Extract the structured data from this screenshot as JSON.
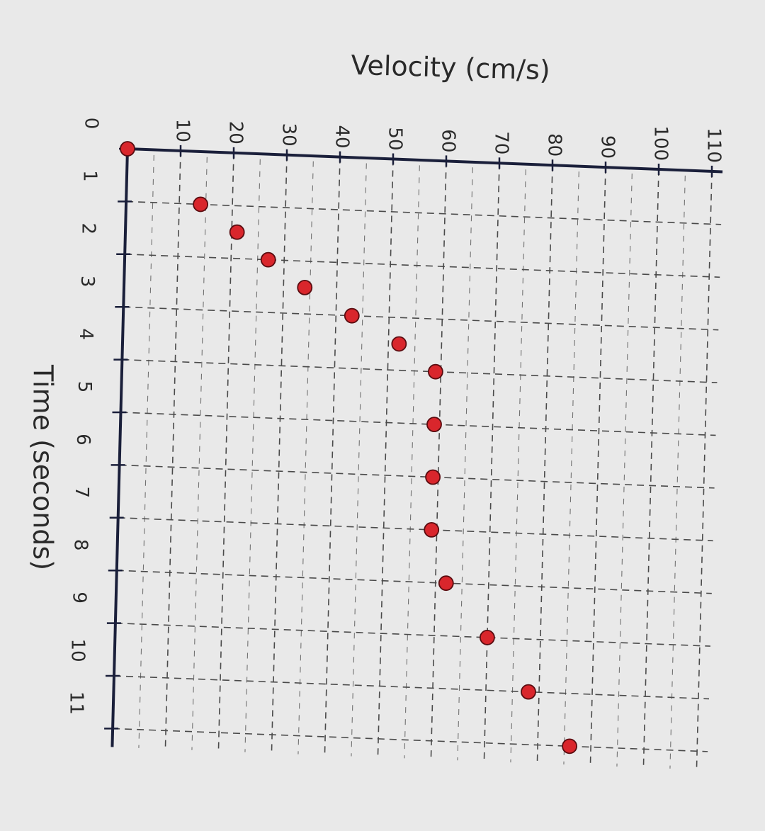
{
  "chart_data": {
    "type": "scatter",
    "title": "",
    "xlabel": "Time (seconds)",
    "ylabel": "Velocity (cm/s)",
    "xlim": [
      0,
      11
    ],
    "ylim": [
      0,
      110
    ],
    "x_ticks": [
      0,
      1,
      2,
      3,
      4,
      5,
      6,
      7,
      8,
      9,
      10,
      11
    ],
    "y_ticks": [
      10,
      20,
      30,
      40,
      50,
      60,
      70,
      80,
      90,
      100,
      110
    ],
    "grid": true,
    "orientation": "rotated 90 degrees clockwise",
    "marker_color": "#d9262c",
    "axis_color": "#1a1f3a",
    "grid_color": "#4a4a4a",
    "series": [
      {
        "x": [
          0,
          1,
          1.5,
          2,
          2.5,
          3,
          3.5,
          4,
          5,
          6,
          7,
          8,
          9,
          10,
          11
        ],
        "y": [
          0,
          14,
          21,
          27,
          34,
          43,
          52,
          59,
          59,
          59,
          59,
          62,
          70,
          78,
          86
        ]
      }
    ]
  }
}
